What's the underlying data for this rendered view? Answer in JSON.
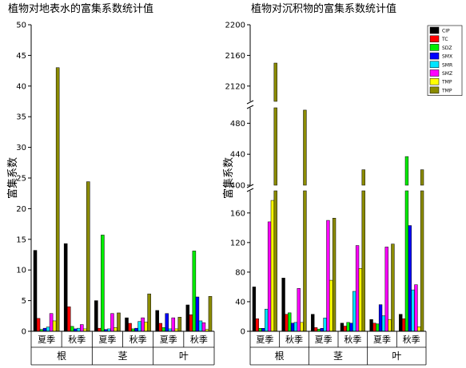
{
  "chart_data": [
    {
      "type": "bar",
      "title": "植物对地表水的富集系数统计值",
      "ylabel": "富集系数",
      "ylim": [
        0,
        50
      ],
      "yticks": [
        0,
        5,
        10,
        15,
        20,
        25,
        30,
        35,
        40,
        45,
        50
      ],
      "categories": [
        "夏季",
        "秋季",
        "夏季",
        "秋季",
        "夏季",
        "秋季"
      ],
      "groups": [
        "根",
        "茎",
        "叶"
      ],
      "series": [
        {
          "name": "CIP",
          "color": "#000000",
          "values": [
            13.2,
            14.3,
            5.0,
            2.2,
            3.4,
            4.3
          ]
        },
        {
          "name": "TC",
          "color": "#ff0000",
          "values": [
            2.1,
            4.0,
            0.5,
            1.3,
            1.3,
            2.7
          ]
        },
        {
          "name": "SDZ",
          "color": "#00ee00",
          "values": [
            0.3,
            0.8,
            15.7,
            0.4,
            0.6,
            13.1
          ]
        },
        {
          "name": "SMX",
          "color": "#0000ff",
          "values": [
            0.5,
            0.4,
            0.3,
            0.5,
            2.9,
            5.6
          ]
        },
        {
          "name": "SMR",
          "color": "#00e5ff",
          "values": [
            0.7,
            0.5,
            0.4,
            1.6,
            0.4,
            1.7
          ]
        },
        {
          "name": "SMZ",
          "color": "#ff00ff",
          "values": [
            2.9,
            1.1,
            2.9,
            2.2,
            2.2,
            1.4
          ]
        },
        {
          "name": "TMP",
          "color": "#ffff00",
          "values": [
            1.7,
            0.4,
            0.6,
            1.5,
            0.4,
            0.3
          ]
        },
        {
          "name": "TMP",
          "color": "#8b8b00",
          "values": [
            43.0,
            24.4,
            3.0,
            6.1,
            2.3,
            5.7
          ]
        }
      ]
    },
    {
      "type": "bar",
      "title": "植物对沉积物的富集系数统计值",
      "ylabel": "富集系数",
      "ylim": [
        0,
        2200
      ],
      "axis_break": [
        [
          190,
          400
        ],
        [
          500,
          2100
        ]
      ],
      "yticks": [
        0,
        40,
        80,
        120,
        160,
        400,
        440,
        480,
        2120,
        2160,
        2200
      ],
      "categories": [
        "夏季",
        "秋季",
        "夏季",
        "秋季",
        "夏季",
        "秋季"
      ],
      "groups": [
        "根",
        "茎",
        "叶"
      ],
      "legend_position": "top-right",
      "series": [
        {
          "name": "CIP",
          "color": "#000000",
          "values": [
            60,
            72,
            23,
            11,
            16,
            23
          ]
        },
        {
          "name": "TC",
          "color": "#ff0000",
          "values": [
            17,
            23,
            5,
            7,
            11,
            17
          ]
        },
        {
          "name": "SDZ",
          "color": "#00ee00",
          "values": [
            4,
            25,
            3,
            12,
            10,
            437
          ]
        },
        {
          "name": "SMX",
          "color": "#0000ff",
          "values": [
            4,
            11,
            4,
            11,
            36,
            143
          ]
        },
        {
          "name": "SMR",
          "color": "#00e5ff",
          "values": [
            30,
            12,
            18,
            54,
            21,
            56
          ]
        },
        {
          "name": "SMZ",
          "color": "#ff00ff",
          "values": [
            148,
            58,
            150,
            116,
            114,
            63
          ]
        },
        {
          "name": "TMP",
          "color": "#ffff00",
          "values": [
            177,
            12,
            69,
            85,
            16,
            6
          ]
        },
        {
          "name": "TMP",
          "color": "#8b8b00",
          "values": [
            2150,
            497,
            153,
            420,
            118,
            420
          ]
        }
      ]
    }
  ]
}
